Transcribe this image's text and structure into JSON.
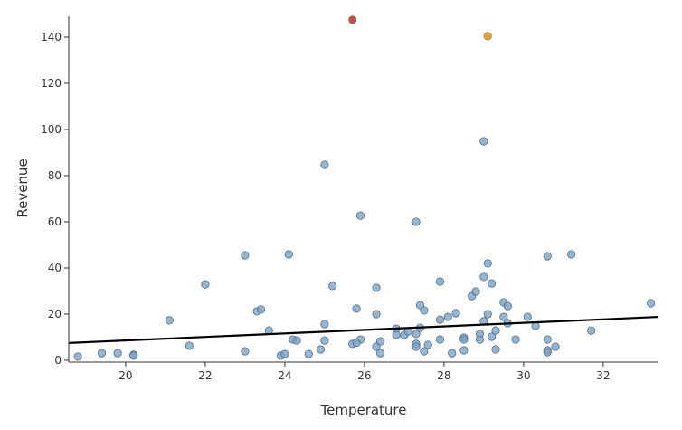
{
  "chart_data": {
    "type": "scatter",
    "title": "",
    "xlabel": "Temperature",
    "ylabel": "Revenue",
    "xlim": [
      18.57,
      33.39
    ],
    "ylim": [
      0,
      149
    ],
    "xticks": [
      20,
      22,
      24,
      26,
      28,
      30,
      32
    ],
    "yticks": [
      0,
      20,
      40,
      60,
      80,
      100,
      120,
      140
    ],
    "grid": false,
    "colors": {
      "point": "#7ea2c4",
      "point_stroke": "#4f6f8f",
      "outlier_high": "#c0504d",
      "outlier_second": "#e8a33a",
      "trend": "#000000"
    },
    "trend_line": {
      "x": [
        18.57,
        33.39
      ],
      "y": [
        7.5,
        18.8
      ]
    },
    "highlighted": [
      {
        "x": 25.7,
        "y": 147.5,
        "color": "#c0504d"
      },
      {
        "x": 29.1,
        "y": 140.4,
        "color": "#e8a33a"
      }
    ],
    "points": [
      [
        18.8,
        1.6
      ],
      [
        19.4,
        3.1
      ],
      [
        19.8,
        3.1
      ],
      [
        20.2,
        2.4
      ],
      [
        20.2,
        2.0
      ],
      [
        21.1,
        17.3
      ],
      [
        21.6,
        6.3
      ],
      [
        22.0,
        32.9
      ],
      [
        23.0,
        45.5
      ],
      [
        23.0,
        3.9
      ],
      [
        23.3,
        21.2
      ],
      [
        23.4,
        22.0
      ],
      [
        23.6,
        12.9
      ],
      [
        23.9,
        2.0
      ],
      [
        24.0,
        2.7
      ],
      [
        24.1,
        45.9
      ],
      [
        24.2,
        9.0
      ],
      [
        24.3,
        8.6
      ],
      [
        24.6,
        2.7
      ],
      [
        24.9,
        4.7
      ],
      [
        25.0,
        15.7
      ],
      [
        25.0,
        8.6
      ],
      [
        25.0,
        84.7
      ],
      [
        25.2,
        32.2
      ],
      [
        25.7,
        7.1
      ],
      [
        25.8,
        22.4
      ],
      [
        25.9,
        9.0
      ],
      [
        25.9,
        62.7
      ],
      [
        25.8,
        7.6
      ],
      [
        26.3,
        31.4
      ],
      [
        26.3,
        20.0
      ],
      [
        26.3,
        5.9
      ],
      [
        26.4,
        8.2
      ],
      [
        26.4,
        3.1
      ],
      [
        26.8,
        13.7
      ],
      [
        26.8,
        11.0
      ],
      [
        27.0,
        11.0
      ],
      [
        27.1,
        12.5
      ],
      [
        27.3,
        11.4
      ],
      [
        27.3,
        7.1
      ],
      [
        27.3,
        5.9
      ],
      [
        27.3,
        60.0
      ],
      [
        27.4,
        23.9
      ],
      [
        27.4,
        14.1
      ],
      [
        27.5,
        21.6
      ],
      [
        27.5,
        3.9
      ],
      [
        27.6,
        6.7
      ],
      [
        27.9,
        34.1
      ],
      [
        27.9,
        17.6
      ],
      [
        27.9,
        9.0
      ],
      [
        28.1,
        18.8
      ],
      [
        28.2,
        3.1
      ],
      [
        28.3,
        20.4
      ],
      [
        28.5,
        9.8
      ],
      [
        28.5,
        9.0
      ],
      [
        28.5,
        4.3
      ],
      [
        28.7,
        27.8
      ],
      [
        28.8,
        29.8
      ],
      [
        28.9,
        11.4
      ],
      [
        28.9,
        9.0
      ],
      [
        29.0,
        36.1
      ],
      [
        29.0,
        16.9
      ],
      [
        29.0,
        94.9
      ],
      [
        29.1,
        42.0
      ],
      [
        29.1,
        20.0
      ],
      [
        29.2,
        33.3
      ],
      [
        29.2,
        10.2
      ],
      [
        29.3,
        12.9
      ],
      [
        29.3,
        4.7
      ],
      [
        29.5,
        25.1
      ],
      [
        29.5,
        18.8
      ],
      [
        29.6,
        23.5
      ],
      [
        29.6,
        16.1
      ],
      [
        29.8,
        9.0
      ],
      [
        30.1,
        18.8
      ],
      [
        30.3,
        14.9
      ],
      [
        30.6,
        45.1
      ],
      [
        30.6,
        9.0
      ],
      [
        30.6,
        4.3
      ],
      [
        30.6,
        3.5
      ],
      [
        30.8,
        5.9
      ],
      [
        31.2,
        45.9
      ],
      [
        31.7,
        12.9
      ],
      [
        33.2,
        24.7
      ]
    ]
  }
}
